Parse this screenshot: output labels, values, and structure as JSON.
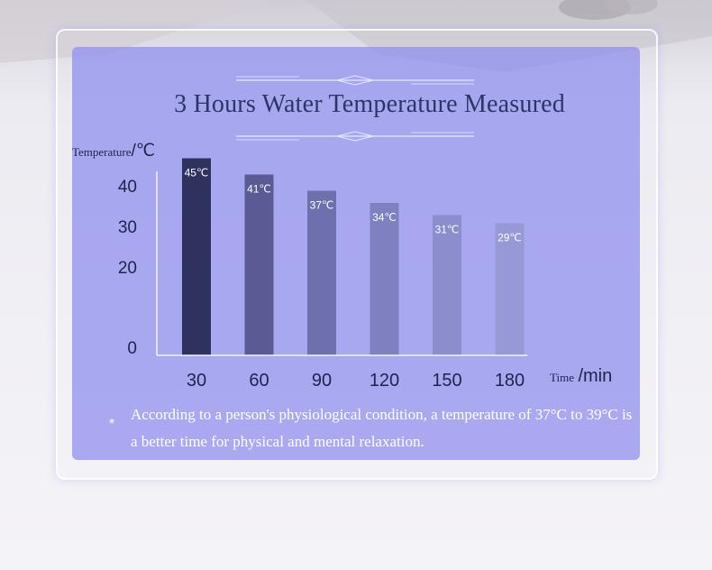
{
  "header": {
    "title": "3 Hours Water Temperature Measured"
  },
  "axes": {
    "y_label": "Temperature",
    "y_unit": "/℃",
    "x_label": "Time",
    "x_unit": "/min"
  },
  "note": {
    "marker": "*",
    "text": "According to a person's physiological condition, a temperature of 37°C to 39°C is a better time for physical and mental relaxation."
  },
  "colors": {
    "panel": "#8c8cee",
    "bars": [
      "#2f315e",
      "#5a5b94",
      "#6e70ad",
      "#7e80c0",
      "#8b8dcc",
      "#9798d6"
    ]
  },
  "chart_data": {
    "type": "bar",
    "title": "3 Hours Water Temperature Measured",
    "xlabel": "Time /min",
    "ylabel": "Temperature/℃",
    "categories": [
      "30",
      "60",
      "90",
      "120",
      "150",
      "180"
    ],
    "values": [
      45,
      41,
      37,
      34,
      31,
      29
    ],
    "data_labels": [
      "45℃",
      "41℃",
      "37℃",
      "34℃",
      "31℃",
      "29℃"
    ],
    "y_ticks": [
      0,
      20,
      30,
      40
    ],
    "ylim": [
      0,
      45
    ],
    "grid": false,
    "legend": "none"
  }
}
